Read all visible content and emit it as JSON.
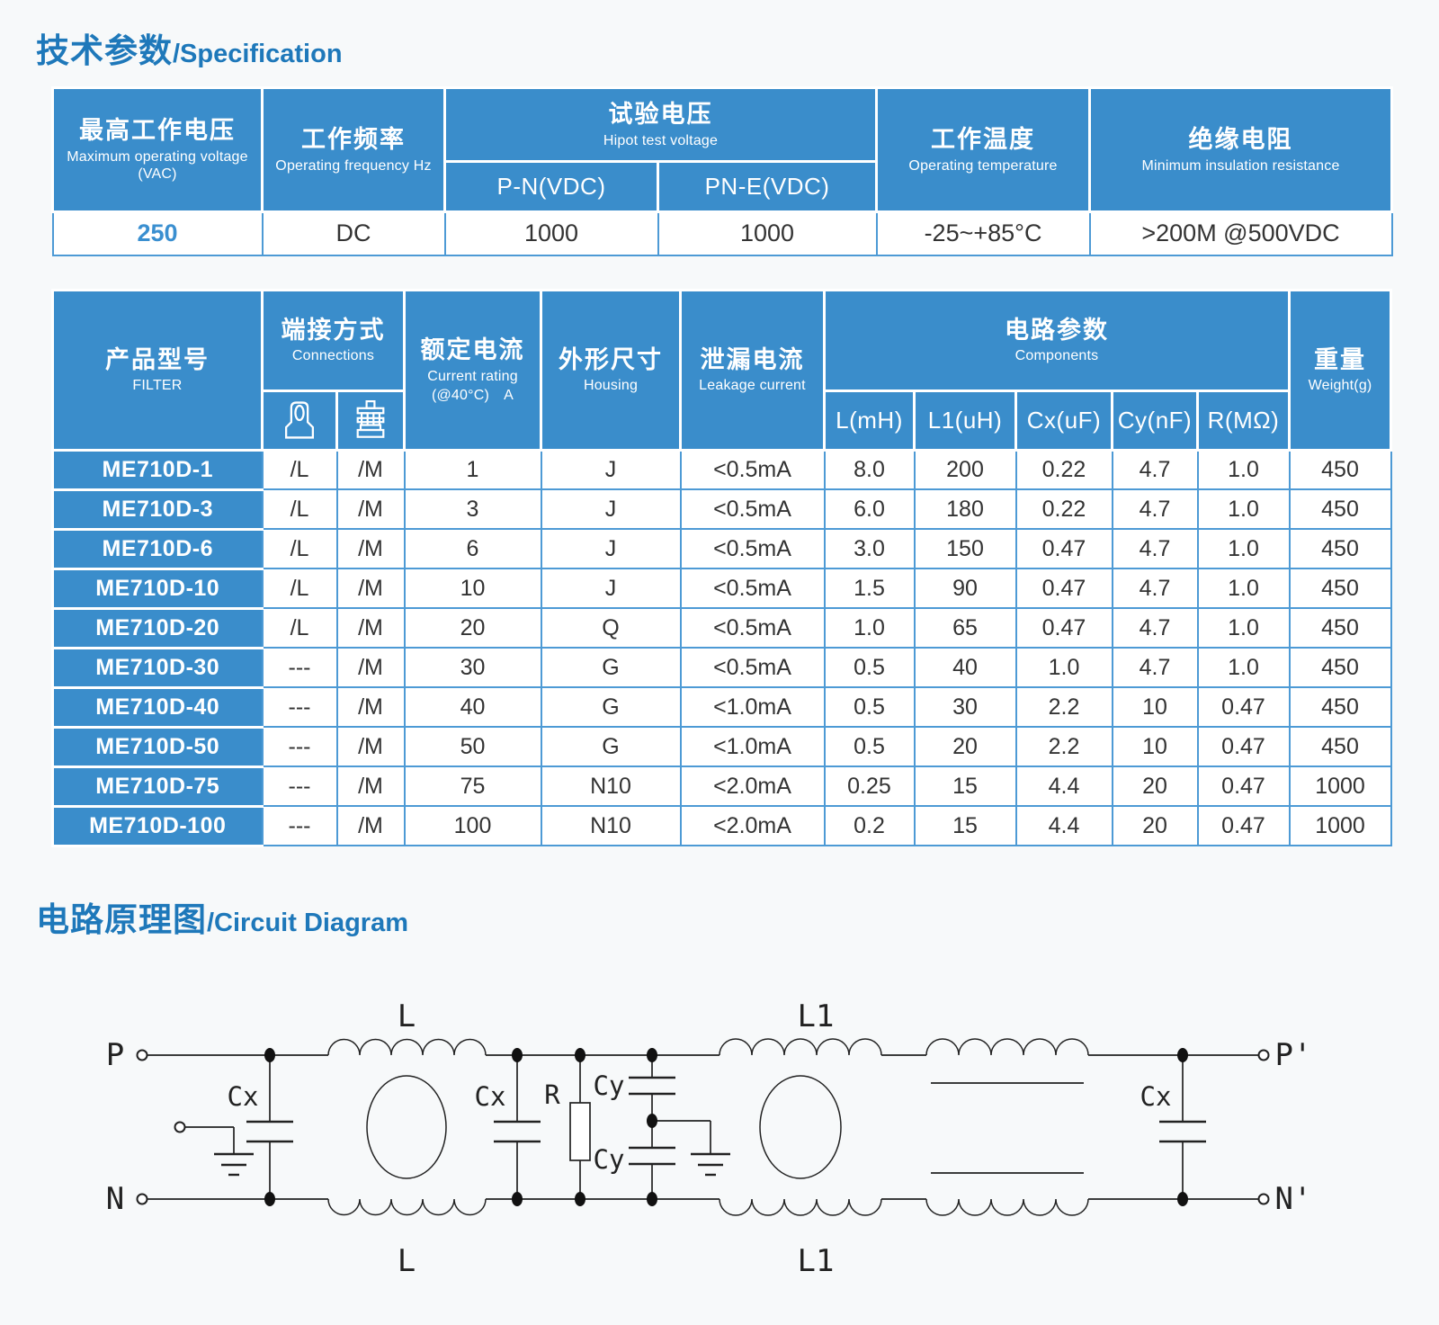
{
  "page": {
    "spec_title_zh": "技术参数",
    "spec_title_en": "/Specification",
    "circuit_title_zh": "电路原理图",
    "circuit_title_en": "/Circuit Diagram"
  },
  "colors": {
    "header_blue": "#3a8dcb",
    "grid_blue": "#4d9ad5",
    "title_blue": "#1e78ba",
    "accent_value_blue": "#3a8fd0",
    "text_dark": "#333333"
  },
  "spec_table": {
    "headers": {
      "max_voltage_zh": "最高工作电压",
      "max_voltage_en": "Maximum operating voltage　(VAC)",
      "frequency_zh": "工作频率",
      "frequency_en": "Operating frequency Hz",
      "hipot_zh": "试验电压",
      "hipot_en": "Hipot test voltage",
      "pn": "P-N(VDC)",
      "pne": "PN-E(VDC)",
      "temp_zh": "工作温度",
      "temp_en": "Operating temperature",
      "insulation_zh": "绝缘电阻",
      "insulation_en": "Minimum insulation resistance"
    },
    "values": {
      "max_voltage": "250",
      "frequency": "DC",
      "pn": "1000",
      "pne": "1000",
      "temp": "-25~+85°C",
      "insulation": ">200M @500VDC"
    }
  },
  "filter_table": {
    "headers": {
      "model_zh": "产品型号",
      "model_en": "FILTER",
      "connections_zh": "端接方式",
      "connections_en": "Connections",
      "lug_icon": "lug-terminal-icon",
      "screw_icon": "screw-terminal-icon",
      "current_zh": "额定电流",
      "current_en1": "Current rating",
      "current_en2": "(@40°C)　A",
      "housing_zh": "外形尺寸",
      "housing_en": "Housing",
      "leakage_zh": "泄漏电流",
      "leakage_en": "Leakage current",
      "components_zh": "电路参数",
      "components_en": "Components",
      "weight_zh": "重量",
      "weight_en": "Weight(g)"
    },
    "components_sub": [
      "L(mH)",
      "L1(uH)",
      "Cx(uF)",
      "Cy(nF)",
      "R(MΩ)"
    ],
    "rows": [
      {
        "model": "ME710D-1",
        "conn_lug": "/L",
        "conn_screw": "/M",
        "current": "1",
        "housing": "J",
        "leakage": "<0.5mA",
        "l": "8.0",
        "l1": "200",
        "cx": "0.22",
        "cy": "4.7",
        "r": "1.0",
        "weight": "450"
      },
      {
        "model": "ME710D-3",
        "conn_lug": "/L",
        "conn_screw": "/M",
        "current": "3",
        "housing": "J",
        "leakage": "<0.5mA",
        "l": "6.0",
        "l1": "180",
        "cx": "0.22",
        "cy": "4.7",
        "r": "1.0",
        "weight": "450"
      },
      {
        "model": "ME710D-6",
        "conn_lug": "/L",
        "conn_screw": "/M",
        "current": "6",
        "housing": "J",
        "leakage": "<0.5mA",
        "l": "3.0",
        "l1": "150",
        "cx": "0.47",
        "cy": "4.7",
        "r": "1.0",
        "weight": "450"
      },
      {
        "model": "ME710D-10",
        "conn_lug": "/L",
        "conn_screw": "/M",
        "current": "10",
        "housing": "J",
        "leakage": "<0.5mA",
        "l": "1.5",
        "l1": "90",
        "cx": "0.47",
        "cy": "4.7",
        "r": "1.0",
        "weight": "450"
      },
      {
        "model": "ME710D-20",
        "conn_lug": "/L",
        "conn_screw": "/M",
        "current": "20",
        "housing": "Q",
        "leakage": "<0.5mA",
        "l": "1.0",
        "l1": "65",
        "cx": "0.47",
        "cy": "4.7",
        "r": "1.0",
        "weight": "450"
      },
      {
        "model": "ME710D-30",
        "conn_lug": "---",
        "conn_screw": "/M",
        "current": "30",
        "housing": "G",
        "leakage": "<0.5mA",
        "l": "0.5",
        "l1": "40",
        "cx": "1.0",
        "cy": "4.7",
        "r": "1.0",
        "weight": "450"
      },
      {
        "model": "ME710D-40",
        "conn_lug": "---",
        "conn_screw": "/M",
        "current": "40",
        "housing": "G",
        "leakage": "<1.0mA",
        "l": "0.5",
        "l1": "30",
        "cx": "2.2",
        "cy": "10",
        "r": "0.47",
        "weight": "450"
      },
      {
        "model": "ME710D-50",
        "conn_lug": "---",
        "conn_screw": "/M",
        "current": "50",
        "housing": "G",
        "leakage": "<1.0mA",
        "l": "0.5",
        "l1": "20",
        "cx": "2.2",
        "cy": "10",
        "r": "0.47",
        "weight": "450"
      },
      {
        "model": "ME710D-75",
        "conn_lug": "---",
        "conn_screw": "/M",
        "current": "75",
        "housing": "N10",
        "leakage": "<2.0mA",
        "l": "0.25",
        "l1": "15",
        "cx": "4.4",
        "cy": "20",
        "r": "0.47",
        "weight": "1000"
      },
      {
        "model": "ME710D-100",
        "conn_lug": "---",
        "conn_screw": "/M",
        "current": "100",
        "housing": "N10",
        "leakage": "<2.0mA",
        "l": "0.2",
        "l1": "15",
        "cx": "4.4",
        "cy": "20",
        "r": "0.47",
        "weight": "1000"
      }
    ]
  },
  "circuit": {
    "labels": {
      "p_in": "P",
      "n_in": "N",
      "p_out": "P'",
      "n_out": "N'",
      "l_top": "L",
      "l_bottom": "L",
      "l1_top": "L1",
      "l1_bottom": "L1",
      "cx1": "Cx",
      "cx2": "Cx",
      "cx3": "Cx",
      "cy_top": "Cy",
      "cy_bottom": "Cy",
      "r": "R"
    }
  }
}
